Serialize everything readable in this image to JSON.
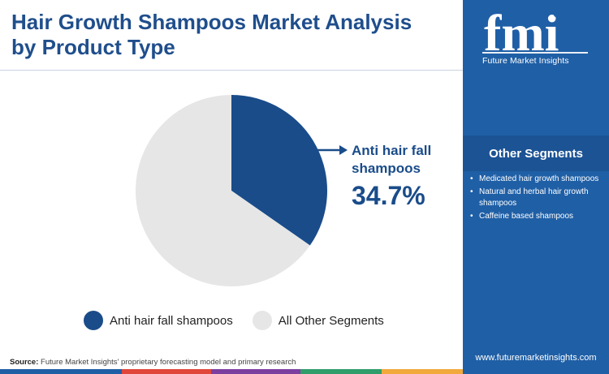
{
  "title": "Hair Growth Shampoos Market Analysis by Product Type",
  "chart_data": {
    "type": "pie",
    "slices": [
      {
        "name": "Anti hair fall shampoos",
        "value": 34.7,
        "color": "#1a4c8a"
      },
      {
        "name": "All Other Segments",
        "value": 65.3,
        "color": "#e6e6e6"
      }
    ],
    "callout": {
      "label": "Anti hair fall shampoos",
      "value": "34.7%"
    },
    "legend": [
      "Anti hair fall shampoos",
      "All Other Segments"
    ]
  },
  "source": {
    "prefix": "Source:",
    "text": "Future Market Insights' proprietary forecasting model and primary research"
  },
  "sidebar": {
    "logo_text": "fmi",
    "logo_subtitle": "Future Market Insights",
    "header": "Other Segments",
    "items": [
      "Medicated hair growth shampoos",
      "Natural and herbal hair growth shampoos",
      "Caffeine based shampoos"
    ],
    "bullet": "•",
    "website": "www.futuremarketinsights.com"
  },
  "colors": {
    "brand_blue": "#1a4c8a",
    "sidebar_blue": "#1f5fa6",
    "other_gray": "#e6e6e6",
    "bottom_bar": [
      "#1f5fa6",
      "#e0463a",
      "#7b3fa0",
      "#2f9e6a",
      "#f2a93b"
    ]
  }
}
